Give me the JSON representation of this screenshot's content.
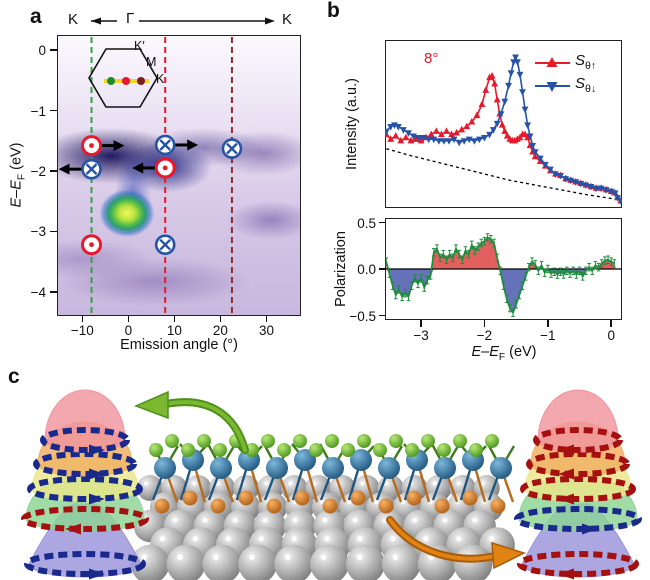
{
  "panel_a": {
    "label": "a",
    "top_axis": {
      "left_k": "K",
      "gamma": "Γ",
      "right_k": "K"
    },
    "ylabel": {
      "e1": "E",
      "dash": "–",
      "e2": "E",
      "sub": "F",
      "rest": " (eV)"
    },
    "xlabel": "Emission angle (°)",
    "xticks": {
      "values": [
        -10,
        0,
        10,
        20,
        30
      ],
      "labels": [
        "−10",
        "0",
        "10",
        "20",
        "30"
      ]
    },
    "yticks": {
      "values": [
        0,
        -1,
        -2,
        -3,
        -4
      ],
      "labels": [
        "0",
        "−1",
        "−2",
        "−3",
        "−4"
      ]
    },
    "inset": {
      "k_prime": "K′",
      "m": "M",
      "k": "K",
      "dot_colors": [
        "#1f8a2f",
        "#e8192c",
        "#7a1f1f"
      ],
      "line_color": "#f5d327"
    }
  },
  "panel_b": {
    "label": "b",
    "angle_label": "8°",
    "legend": [
      {
        "s": "S",
        "sub": "θ↑",
        "color": "#e8192c"
      },
      {
        "s": "S",
        "sub": "θ↓",
        "color": "#2653a6"
      }
    ],
    "ylabel_top": "Intensity (a.u.)",
    "ylabel_bottom": "Polarization",
    "yticks_bottom": {
      "values": [
        0.5,
        0.0,
        -0.5
      ],
      "labels": [
        "0.5",
        "0.0",
        "−0.5"
      ]
    },
    "xticks": {
      "values": [
        -3,
        -2,
        -1,
        0
      ],
      "labels": [
        "−3",
        "−2",
        "−1",
        "0"
      ]
    },
    "xlabel": {
      "e1": "E",
      "dash": "–",
      "e2": "E",
      "sub": "F",
      "rest": " (eV)"
    }
  },
  "panel_c": {
    "label": "c",
    "dome_colors": [
      "#f0949e",
      "#f0af62",
      "#eae78a",
      "#8cd494",
      "#9a93da"
    ],
    "left_stack_ring_colors": [
      "#1a2a8c",
      "#1a2a8c",
      "#1a2a8c",
      "#a51010",
      "#1a2a8c"
    ],
    "right_stack_ring_colors": [
      "#a51010",
      "#a51010",
      "#a51010",
      "#1a2a8c",
      "#a51010"
    ],
    "atom_colors": {
      "top_layer": "#6abf2e",
      "middle_layer": "#2a6ca5",
      "bottom_layer": "#e07b1e",
      "substrate": "#9a9a9a"
    },
    "arrow_to_left_color": "#7cb82f",
    "arrow_to_right_color": "#e08214"
  },
  "chart_data": [
    {
      "id": "arpes_map",
      "type": "heatmap",
      "panel": "a",
      "title": "ARPES intensity map along K–Γ–K",
      "xlabel": "Emission angle (°)",
      "ylabel": "E−EF (eV)",
      "x_range": [
        -15.5,
        37.5
      ],
      "y_range": [
        -4.4,
        0.25
      ],
      "colormap": "light-lavender to dark purple, green-yellow maximum",
      "features": {
        "dark_band": {
          "x": [
            -14,
            13
          ],
          "y": [
            -2.3,
            -1.2
          ]
        },
        "bright_maximum": {
          "x": 0,
          "y": -2.7
        },
        "right_diffuse_band": {
          "x": [
            20,
            37
          ],
          "y": [
            -3.1,
            -1.1
          ]
        }
      },
      "cut_lines": [
        {
          "angle_deg": -8,
          "color": "#35a046"
        },
        {
          "angle_deg": 8,
          "color": "#e8192c"
        },
        {
          "angle_deg": 22.5,
          "color": "#8f2b2b"
        }
      ],
      "spin_markers": [
        {
          "angle_deg": -8,
          "energy_eV": -1.58,
          "spin": "out-of-plane",
          "arrow": "right"
        },
        {
          "angle_deg": 8,
          "energy_eV": -1.57,
          "spin": "into-plane",
          "arrow": "right"
        },
        {
          "angle_deg": 22.5,
          "energy_eV": -1.63,
          "spin": "into-plane",
          "arrow": null
        },
        {
          "angle_deg": -8,
          "energy_eV": -1.97,
          "spin": "into-plane",
          "arrow": "left"
        },
        {
          "angle_deg": 8,
          "energy_eV": -1.95,
          "spin": "out-of-plane",
          "arrow": "left"
        },
        {
          "angle_deg": -8,
          "energy_eV": -3.22,
          "spin": "out-of-plane",
          "arrow": null
        },
        {
          "angle_deg": 8,
          "energy_eV": -3.22,
          "spin": "into-plane",
          "arrow": null
        }
      ]
    },
    {
      "id": "spin_intensity",
      "type": "line",
      "panel": "b-top",
      "xlabel": "E−EF (eV)",
      "ylabel": "Intensity (a.u.)",
      "xlim": [
        -3.57,
        0.17
      ],
      "ylim": [
        0,
        1
      ],
      "annotation": "8°",
      "series": [
        {
          "name": "Sθ↑",
          "color": "#e8192c",
          "marker": "triangle-up",
          "points": [
            [
              -3.55,
              0.44
            ],
            [
              -3.48,
              0.41
            ],
            [
              -3.4,
              0.43
            ],
            [
              -3.32,
              0.4
            ],
            [
              -3.24,
              0.42
            ],
            [
              -3.16,
              0.4
            ],
            [
              -3.08,
              0.41
            ],
            [
              -3.0,
              0.4
            ],
            [
              -2.92,
              0.42
            ],
            [
              -2.84,
              0.44
            ],
            [
              -2.76,
              0.46
            ],
            [
              -2.68,
              0.44
            ],
            [
              -2.6,
              0.46
            ],
            [
              -2.52,
              0.44
            ],
            [
              -2.44,
              0.45
            ],
            [
              -2.36,
              0.47
            ],
            [
              -2.28,
              0.49
            ],
            [
              -2.2,
              0.52
            ],
            [
              -2.12,
              0.56
            ],
            [
              -2.04,
              0.63
            ],
            [
              -1.98,
              0.72
            ],
            [
              -1.92,
              0.8
            ],
            [
              -1.88,
              0.81
            ],
            [
              -1.84,
              0.76
            ],
            [
              -1.8,
              0.66
            ],
            [
              -1.76,
              0.57
            ],
            [
              -1.72,
              0.5
            ],
            [
              -1.68,
              0.46
            ],
            [
              -1.64,
              0.43
            ],
            [
              -1.6,
              0.41
            ],
            [
              -1.56,
              0.4
            ],
            [
              -1.52,
              0.4
            ],
            [
              -1.48,
              0.41
            ],
            [
              -1.44,
              0.42
            ],
            [
              -1.4,
              0.44
            ],
            [
              -1.36,
              0.44
            ],
            [
              -1.32,
              0.42
            ],
            [
              -1.28,
              0.37
            ],
            [
              -1.24,
              0.33
            ],
            [
              -1.2,
              0.3
            ],
            [
              -1.12,
              0.27
            ],
            [
              -1.04,
              0.24
            ],
            [
              -0.96,
              0.21
            ],
            [
              -0.88,
              0.19
            ],
            [
              -0.8,
              0.18
            ],
            [
              -0.72,
              0.16
            ],
            [
              -0.64,
              0.15
            ],
            [
              -0.56,
              0.14
            ],
            [
              -0.48,
              0.13
            ],
            [
              -0.4,
              0.12
            ],
            [
              -0.32,
              0.11
            ],
            [
              -0.24,
              0.1
            ],
            [
              -0.16,
              0.1
            ],
            [
              -0.08,
              0.09
            ],
            [
              0.0,
              0.08
            ],
            [
              0.06,
              0.07
            ],
            [
              0.1,
              0.04
            ],
            [
              0.15,
              0.02
            ]
          ]
        },
        {
          "name": "Sθ↓",
          "color": "#2653a6",
          "marker": "triangle-down",
          "points": [
            [
              -3.55,
              0.46
            ],
            [
              -3.48,
              0.49
            ],
            [
              -3.42,
              0.5
            ],
            [
              -3.36,
              0.49
            ],
            [
              -3.28,
              0.47
            ],
            [
              -3.2,
              0.45
            ],
            [
              -3.12,
              0.43
            ],
            [
              -3.04,
              0.42
            ],
            [
              -2.96,
              0.42
            ],
            [
              -2.88,
              0.41
            ],
            [
              -2.8,
              0.41
            ],
            [
              -2.72,
              0.4
            ],
            [
              -2.64,
              0.4
            ],
            [
              -2.56,
              0.4
            ],
            [
              -2.48,
              0.41
            ],
            [
              -2.4,
              0.39
            ],
            [
              -2.32,
              0.4
            ],
            [
              -2.24,
              0.41
            ],
            [
              -2.16,
              0.4
            ],
            [
              -2.08,
              0.41
            ],
            [
              -2.0,
              0.42
            ],
            [
              -1.92,
              0.44
            ],
            [
              -1.86,
              0.47
            ],
            [
              -1.8,
              0.51
            ],
            [
              -1.74,
              0.57
            ],
            [
              -1.68,
              0.65
            ],
            [
              -1.62,
              0.75
            ],
            [
              -1.58,
              0.83
            ],
            [
              -1.54,
              0.9
            ],
            [
              -1.51,
              0.93
            ],
            [
              -1.48,
              0.9
            ],
            [
              -1.44,
              0.82
            ],
            [
              -1.4,
              0.71
            ],
            [
              -1.36,
              0.6
            ],
            [
              -1.32,
              0.5
            ],
            [
              -1.28,
              0.43
            ],
            [
              -1.24,
              0.37
            ],
            [
              -1.2,
              0.33
            ],
            [
              -1.12,
              0.29
            ],
            [
              -1.04,
              0.25
            ],
            [
              -0.96,
              0.22
            ],
            [
              -0.88,
              0.19
            ],
            [
              -0.8,
              0.18
            ],
            [
              -0.72,
              0.16
            ],
            [
              -0.64,
              0.15
            ],
            [
              -0.56,
              0.14
            ],
            [
              -0.48,
              0.13
            ],
            [
              -0.4,
              0.12
            ],
            [
              -0.32,
              0.11
            ],
            [
              -0.24,
              0.1
            ],
            [
              -0.16,
              0.1
            ],
            [
              -0.08,
              0.09
            ],
            [
              0.0,
              0.08
            ],
            [
              0.06,
              0.07
            ],
            [
              0.1,
              0.04
            ],
            [
              0.15,
              0.02
            ]
          ]
        },
        {
          "name": "background",
          "color": "#000000",
          "style": "dashed",
          "points": [
            [
              -3.55,
              0.35
            ],
            [
              -3.2,
              0.31
            ],
            [
              -2.8,
              0.27
            ],
            [
              -2.4,
              0.23
            ],
            [
              -2.0,
              0.19
            ],
            [
              -1.6,
              0.15
            ],
            [
              -1.2,
              0.12
            ],
            [
              -0.8,
              0.09
            ],
            [
              -0.4,
              0.06
            ],
            [
              0.0,
              0.035
            ],
            [
              0.15,
              0.03
            ]
          ]
        }
      ]
    },
    {
      "id": "spin_polarization",
      "type": "area",
      "panel": "b-bottom",
      "xlabel": "E−EF (eV)",
      "ylabel": "Polarization",
      "xlim": [
        -3.57,
        0.17
      ],
      "ylim": [
        -0.5,
        0.5
      ],
      "line_color": "#1e8c3c",
      "fill_positive": "#e36060",
      "fill_negative": "#6673bb",
      "error_bar": 0.04,
      "points": [
        [
          -3.55,
          0.08
        ],
        [
          -3.5,
          -0.05
        ],
        [
          -3.45,
          -0.18
        ],
        [
          -3.4,
          -0.28
        ],
        [
          -3.35,
          -0.22
        ],
        [
          -3.3,
          -0.3
        ],
        [
          -3.25,
          -0.26
        ],
        [
          -3.2,
          -0.3
        ],
        [
          -3.15,
          -0.18
        ],
        [
          -3.1,
          -0.1
        ],
        [
          -3.05,
          -0.16
        ],
        [
          -3.0,
          -0.1
        ],
        [
          -2.95,
          -0.2
        ],
        [
          -2.9,
          -0.12
        ],
        [
          -2.85,
          -0.07
        ],
        [
          -2.8,
          0.18
        ],
        [
          -2.75,
          0.22
        ],
        [
          -2.7,
          0.12
        ],
        [
          -2.65,
          0.16
        ],
        [
          -2.6,
          0.1
        ],
        [
          -2.55,
          0.16
        ],
        [
          -2.5,
          0.12
        ],
        [
          -2.45,
          0.22
        ],
        [
          -2.4,
          0.16
        ],
        [
          -2.35,
          0.1
        ],
        [
          -2.3,
          0.2
        ],
        [
          -2.25,
          0.16
        ],
        [
          -2.2,
          0.26
        ],
        [
          -2.15,
          0.2
        ],
        [
          -2.1,
          0.24
        ],
        [
          -2.05,
          0.28
        ],
        [
          -2.0,
          0.3
        ],
        [
          -1.95,
          0.34
        ],
        [
          -1.9,
          0.32
        ],
        [
          -1.85,
          0.28
        ],
        [
          -1.8,
          0.12
        ],
        [
          -1.75,
          -0.02
        ],
        [
          -1.7,
          -0.18
        ],
        [
          -1.65,
          -0.32
        ],
        [
          -1.6,
          -0.42
        ],
        [
          -1.55,
          -0.47
        ],
        [
          -1.5,
          -0.38
        ],
        [
          -1.45,
          -0.28
        ],
        [
          -1.4,
          -0.18
        ],
        [
          -1.35,
          -0.08
        ],
        [
          -1.3,
          0.02
        ],
        [
          -1.25,
          0.08
        ],
        [
          -1.2,
          0.05
        ],
        [
          -1.15,
          -0.02
        ],
        [
          -1.1,
          0.04
        ],
        [
          -1.05,
          -0.04
        ],
        [
          -1.0,
          0.0
        ],
        [
          -0.95,
          -0.05
        ],
        [
          -0.9,
          -0.03
        ],
        [
          -0.85,
          -0.06
        ],
        [
          -0.8,
          -0.03
        ],
        [
          -0.75,
          -0.06
        ],
        [
          -0.7,
          -0.02
        ],
        [
          -0.65,
          -0.05
        ],
        [
          -0.6,
          -0.02
        ],
        [
          -0.55,
          -0.06
        ],
        [
          -0.5,
          -0.02
        ],
        [
          -0.45,
          -0.08
        ],
        [
          -0.4,
          -0.02
        ],
        [
          -0.35,
          0.02
        ],
        [
          -0.3,
          -0.02
        ],
        [
          -0.25,
          0.04
        ],
        [
          -0.2,
          0.02
        ],
        [
          -0.15,
          0.06
        ],
        [
          -0.1,
          0.09
        ],
        [
          -0.05,
          0.1
        ],
        [
          0.0,
          0.08
        ],
        [
          0.05,
          0.06
        ]
      ]
    }
  ]
}
